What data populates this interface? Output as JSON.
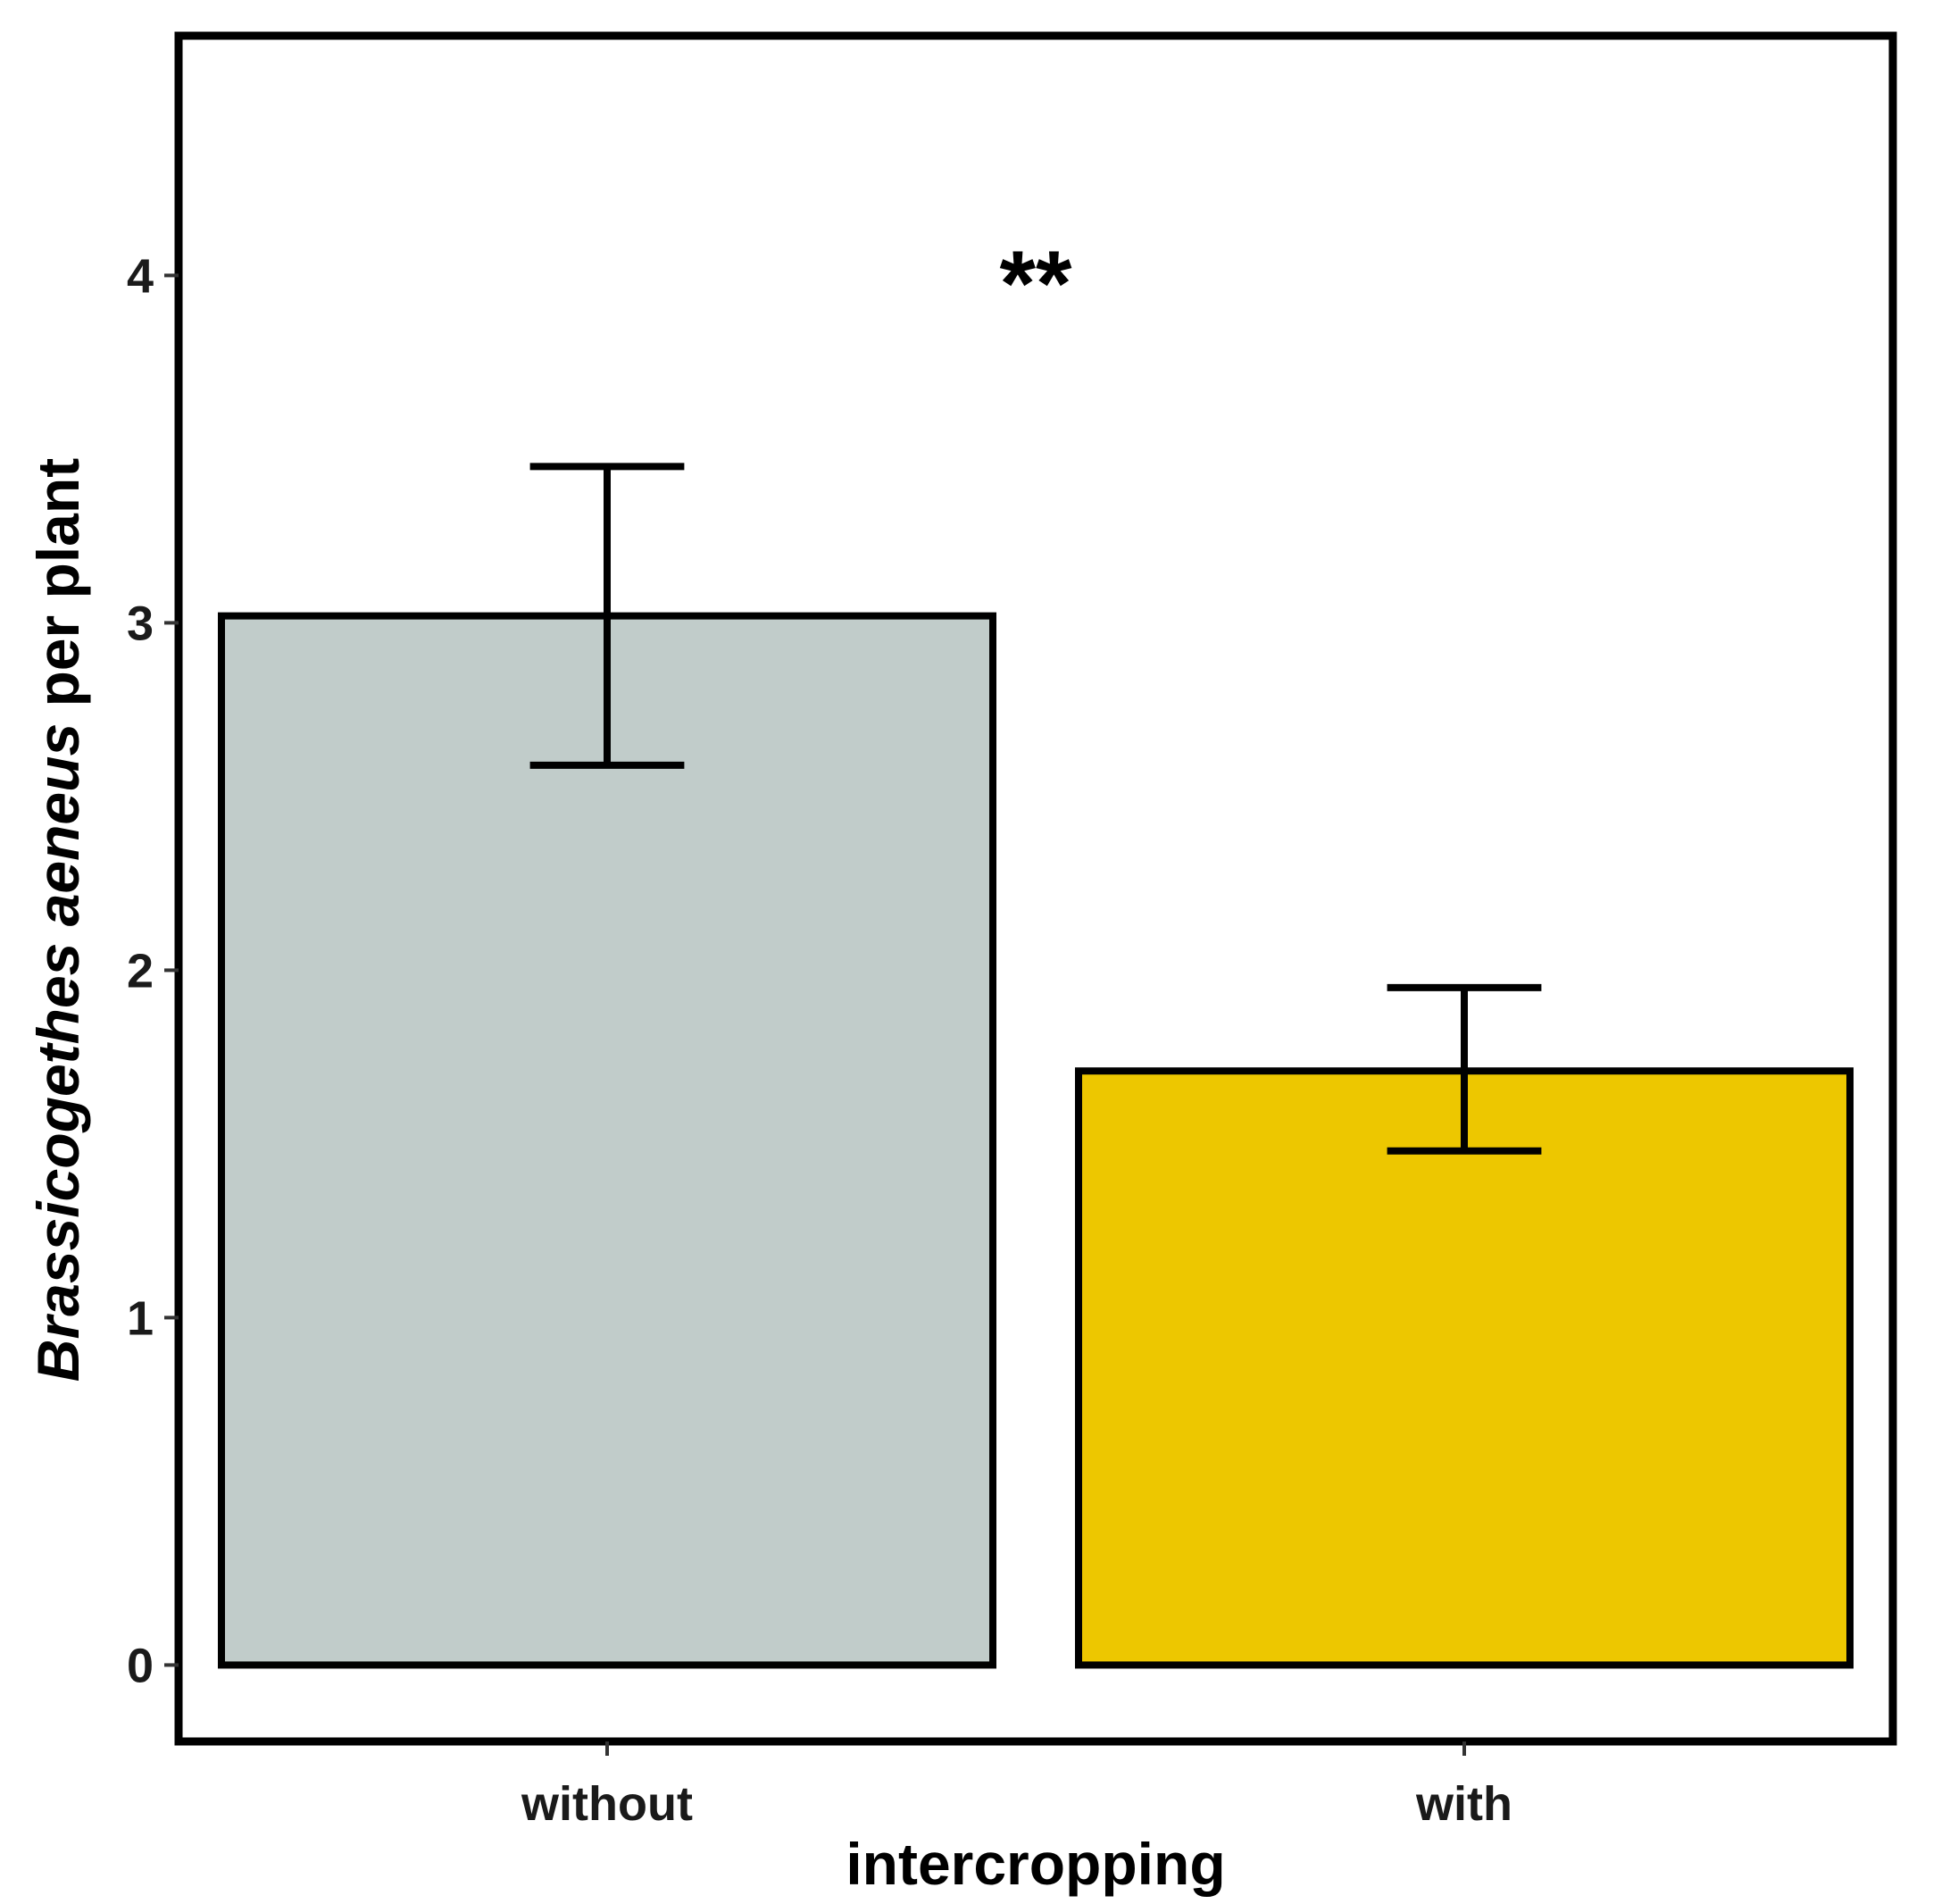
{
  "chart_data": {
    "type": "bar",
    "categories": [
      "without",
      "with"
    ],
    "values": [
      3.02,
      1.71
    ],
    "error_bars": [
      {
        "lower": 2.59,
        "upper": 3.45
      },
      {
        "lower": 1.48,
        "upper": 1.95
      }
    ],
    "colors": [
      "#c1ccca",
      "#edc700"
    ],
    "xlabel": "intercropping",
    "ylabel_italic": "Brassicogethes aeneus",
    "ylabel_rest": " per plant",
    "ylim": [
      -0.22,
      4.69
    ],
    "yticks": [
      "0",
      "1",
      "2",
      "3",
      "4"
    ],
    "annotation": "**",
    "annotation_y": 4.07,
    "grid": false,
    "legend": "none"
  }
}
